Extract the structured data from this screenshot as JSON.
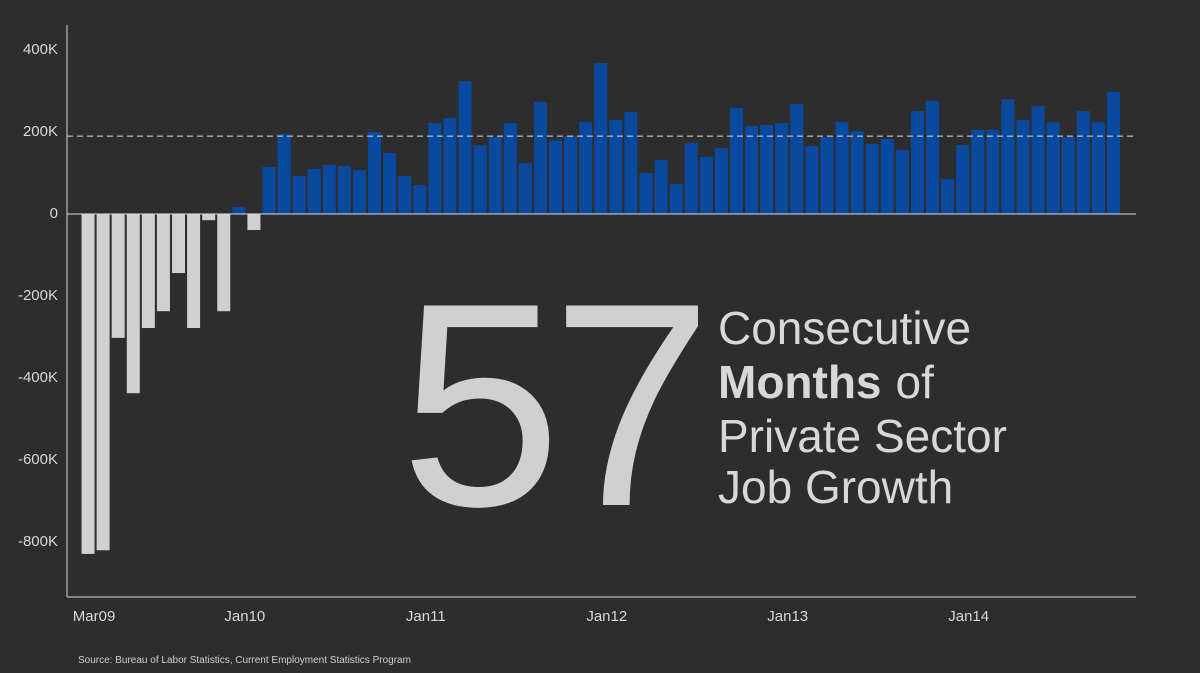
{
  "chart_data": {
    "type": "bar",
    "categories": [
      "Mar09",
      null,
      null,
      null,
      null,
      null,
      null,
      null,
      null,
      null,
      "Jan10",
      null,
      null,
      null,
      null,
      null,
      null,
      null,
      null,
      null,
      null,
      null,
      "Jan11",
      null,
      null,
      null,
      null,
      null,
      null,
      null,
      null,
      null,
      null,
      null,
      "Jan12",
      null,
      null,
      null,
      null,
      null,
      null,
      null,
      null,
      null,
      null,
      null,
      "Jan13",
      null,
      null,
      null,
      null,
      null,
      null,
      null,
      null,
      null,
      null,
      null,
      "Jan14",
      null,
      null,
      null,
      null,
      null,
      null,
      null,
      null,
      null,
      null
    ],
    "values": [
      -829,
      -820,
      -302,
      -437,
      -278,
      -237,
      -144,
      -278,
      -15,
      -237,
      17,
      -39,
      115,
      195,
      93,
      110,
      120,
      117,
      107,
      200,
      149,
      93,
      71,
      222,
      234,
      324,
      168,
      188,
      222,
      124,
      273,
      180,
      190,
      224,
      368,
      229,
      249,
      100,
      132,
      73,
      173,
      139,
      161,
      259,
      215,
      217,
      222,
      268,
      166,
      188,
      224,
      202,
      171,
      183,
      156,
      251,
      276,
      85,
      168,
      205,
      205,
      280,
      229,
      263,
      224,
      188,
      251,
      224,
      298
    ],
    "positive_color": "#0a4a9e",
    "negative_color": "#d0d0d0",
    "ylim": [
      -934,
      461
    ],
    "yticks": [
      {
        "value": -800,
        "label": "-800K"
      },
      {
        "value": -600,
        "label": "-600K"
      },
      {
        "value": -400,
        "label": "-400K"
      },
      {
        "value": -200,
        "label": "-200K"
      },
      0,
      {
        "value": 200,
        "label": "200K"
      },
      {
        "value": 400,
        "label": "400K"
      }
    ],
    "reference_line": 190,
    "annotation": {
      "number": "57",
      "line1": "Consecutive",
      "line2_bold": "Months",
      "line2_rest": "of",
      "line3": "Private Sector",
      "line4": "Job Growth"
    },
    "source": "Source: Bureau of Labor Statistics, Current Employment Statistics Program"
  }
}
